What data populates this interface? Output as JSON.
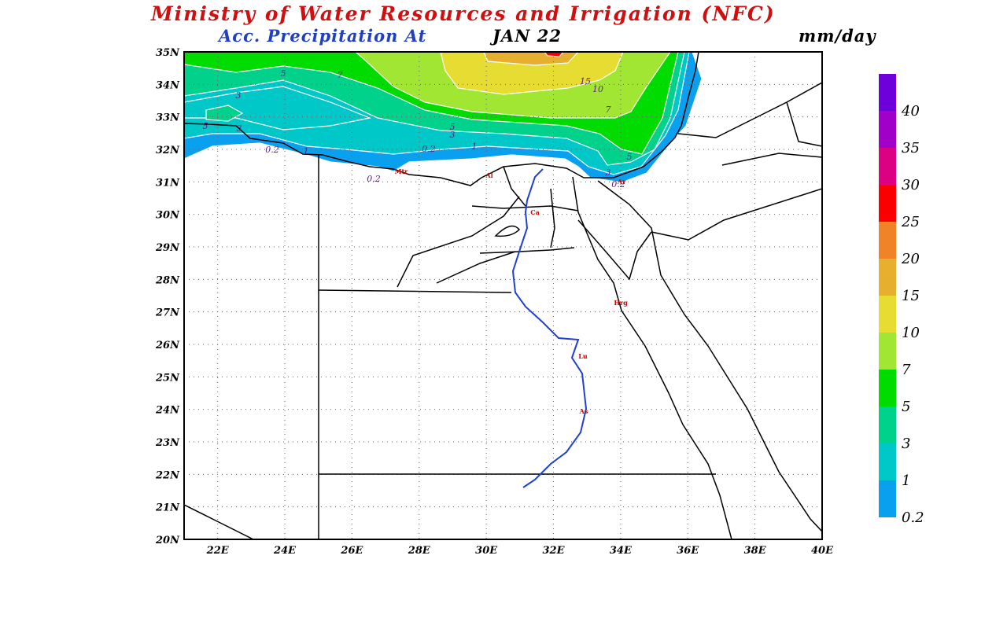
{
  "title": "Ministry of Water Resources and Irrigation (NFC)",
  "subtitle": "Acc. Precipitation  At",
  "date": "JAN 22",
  "unit": "mm/day",
  "map": {
    "lat_ticks": [
      {
        "value": 35,
        "label": "35N"
      },
      {
        "value": 34,
        "label": "34N"
      },
      {
        "value": 33,
        "label": "33N"
      },
      {
        "value": 32,
        "label": "32N"
      },
      {
        "value": 31,
        "label": "31N"
      },
      {
        "value": 30,
        "label": "30N"
      },
      {
        "value": 29,
        "label": "29N"
      },
      {
        "value": 28,
        "label": "28N"
      },
      {
        "value": 27,
        "label": "27N"
      },
      {
        "value": 26,
        "label": "26N"
      },
      {
        "value": 25,
        "label": "25N"
      },
      {
        "value": 24,
        "label": "24N"
      },
      {
        "value": 23,
        "label": "23N"
      },
      {
        "value": 22,
        "label": "22N"
      },
      {
        "value": 21,
        "label": "21N"
      },
      {
        "value": 20,
        "label": "20N"
      }
    ],
    "lon_ticks": [
      {
        "value": 22,
        "label": "22E"
      },
      {
        "value": 24,
        "label": "24E"
      },
      {
        "value": 26,
        "label": "26E"
      },
      {
        "value": 28,
        "label": "28E"
      },
      {
        "value": 30,
        "label": "30E"
      },
      {
        "value": 32,
        "label": "32E"
      },
      {
        "value": 34,
        "label": "34E"
      },
      {
        "value": 36,
        "label": "36E"
      },
      {
        "value": 38,
        "label": "38E"
      },
      {
        "value": 40,
        "label": "40E"
      }
    ],
    "contour_labels": [
      "5",
      "7",
      "3",
      "5",
      "3",
      "0.2",
      "1",
      "0.2",
      "5",
      "3",
      "0.2",
      "1",
      "15",
      "10",
      "7",
      "5",
      "3",
      "0.2"
    ],
    "city_labels": [
      "Mtr",
      "Al",
      "Ca",
      "Ar",
      "Hrg",
      "Lu",
      "As"
    ]
  },
  "colorbar": {
    "levels": [
      0.2,
      1,
      3,
      5,
      7,
      10,
      15,
      20,
      25,
      30,
      35,
      40
    ],
    "colors": [
      "#0aa0f0",
      "#00c8c8",
      "#00d28c",
      "#00dc00",
      "#a0e632",
      "#e6dc32",
      "#e6af2d",
      "#f08228",
      "#fa0000",
      "#dc0082",
      "#a000c8",
      "#6e00dc"
    ]
  }
}
